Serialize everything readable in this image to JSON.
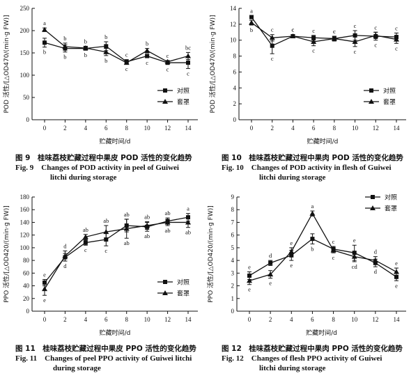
{
  "series_names": [
    "对照",
    "套罩"
  ],
  "charts": [
    {
      "type": "line",
      "x": [
        0,
        2,
        4,
        6,
        8,
        10,
        12,
        14
      ],
      "xticks": [
        "0",
        "2",
        "4",
        "6",
        "8",
        "10",
        "12",
        "14"
      ],
      "xlabel": "贮藏时间/d",
      "ylabel": "POD 活性/[△OD470/(min·g FW)]",
      "ylim": [
        0,
        250
      ],
      "yticks": [
        "0",
        "50",
        "100",
        "150",
        "200",
        "250"
      ],
      "ytick_values": [
        0,
        50,
        100,
        150,
        200,
        250
      ],
      "legend_position": "lower-right",
      "caption_zh": "图 9　桂味荔枝贮藏过程中果皮 POD 活性的变化趋势",
      "caption_en1": "Fig. 9　Changes of POD activity in peel of Guiwei",
      "caption_en2": "litchi during storage",
      "series": [
        {
          "name": "对照",
          "marker": "square",
          "values": [
            173,
            160,
            160,
            165,
            130,
            143,
            128,
            128
          ],
          "err": [
            10,
            8,
            4,
            10,
            5,
            4,
            4,
            13
          ],
          "sig": [
            "b",
            "b",
            "b",
            "b",
            "c",
            "c",
            "c",
            "c"
          ]
        },
        {
          "name": "套罩",
          "marker": "triangle",
          "values": [
            202,
            164,
            161,
            152,
            128,
            155,
            130,
            143
          ],
          "err": [
            4,
            8,
            4,
            8,
            3,
            5,
            3,
            8
          ],
          "sig": [
            "a",
            "b",
            "b",
            "b",
            "c",
            "b",
            "c",
            "bc"
          ]
        }
      ]
    },
    {
      "type": "line",
      "x": [
        0,
        2,
        4,
        6,
        8,
        10,
        12,
        14
      ],
      "xticks": [
        "0",
        "2",
        "4",
        "6",
        "8",
        "10",
        "12",
        "14"
      ],
      "xlabel": "贮藏时间/d",
      "ylabel": "POD 活性/[△OD470/(min·g FW)]",
      "ylim": [
        0,
        14
      ],
      "yticks": [
        "0",
        "2",
        "4",
        "6",
        "8",
        "10",
        "12",
        "14"
      ],
      "ytick_values": [
        0,
        2,
        4,
        6,
        8,
        10,
        12,
        14
      ],
      "legend_position": "lower-right",
      "caption_zh": "图 10　桂味荔枝贮藏过程中果肉 POD 活性的变化趋势",
      "caption_en1": "Fig. 10　Changes of POD activity in flesh of Guiwei",
      "caption_en2": "litchi during storage",
      "series": [
        {
          "name": "对照",
          "marker": "square",
          "values": [
            12.9,
            9.3,
            10.5,
            10.3,
            10.2,
            10.6,
            10.5,
            10.4
          ],
          "err": [
            0.2,
            1.0,
            0.2,
            0.3,
            0.3,
            0.6,
            0.5,
            0.5
          ],
          "sig": [
            "a",
            "c",
            "c",
            "c",
            "c",
            "c",
            "c",
            "c"
          ]
        },
        {
          "name": "套罩",
          "marker": "triangle",
          "values": [
            12.2,
            10.3,
            10.5,
            9.8,
            10.2,
            9.8,
            10.6,
            10.1
          ],
          "err": [
            0.3,
            0.4,
            0.2,
            0.5,
            0.3,
            0.6,
            0.4,
            0.5
          ],
          "sig": [
            "b",
            "c",
            "c",
            "c",
            "c",
            "c",
            "c",
            "c"
          ]
        }
      ]
    },
    {
      "type": "line",
      "x": [
        0,
        2,
        4,
        6,
        8,
        10,
        12,
        14
      ],
      "xticks": [
        "0",
        "2",
        "4",
        "6",
        "8",
        "10",
        "12",
        "14"
      ],
      "xlabel": "贮藏时间/d",
      "ylabel": "PPO 活性/[△OD420/(min·g FW)]",
      "ylim": [
        0,
        180
      ],
      "yticks": [
        "0",
        "20",
        "40",
        "60",
        "80",
        "100",
        "120",
        "140",
        "160",
        "180"
      ],
      "ytick_values": [
        0,
        20,
        40,
        60,
        80,
        100,
        120,
        140,
        160,
        180
      ],
      "legend_position": "lower-right",
      "caption_zh": "图 11　桂味荔枝贮藏过程中果皮 PPO 活性的变化趋势",
      "caption_en1": "Fig. 11　Changes of peel PPO activity of Guiwei litchi",
      "caption_en2": "during storage",
      "series": [
        {
          "name": "对照",
          "marker": "square",
          "values": [
            45,
            85,
            108,
            113,
            135,
            133,
            142,
            148
          ],
          "err": [
            5,
            6,
            4,
            10,
            10,
            7,
            5,
            6
          ],
          "sig": [
            "e",
            "d",
            "c",
            "c",
            "ab",
            "ab",
            "ab",
            "a"
          ]
        },
        {
          "name": "套罩",
          "marker": "triangle",
          "values": [
            35,
            87,
            117,
            125,
            130,
            135,
            140,
            140
          ],
          "err": [
            10,
            8,
            4,
            10,
            15,
            6,
            5,
            8
          ],
          "sig": [
            "e",
            "d",
            "ab",
            "ab",
            "ab",
            "ab",
            "ab",
            "ab"
          ]
        }
      ]
    },
    {
      "type": "line",
      "x": [
        0,
        2,
        4,
        6,
        8,
        10,
        12,
        14
      ],
      "xticks": [
        "0",
        "2",
        "4",
        "6",
        "8",
        "10",
        "12",
        "14"
      ],
      "xlabel": "贮藏时间/d",
      "ylabel": "PPO 活性/[△OD420/(min·g FW)]",
      "ylim": [
        0,
        9
      ],
      "yticks": [
        "0",
        "1",
        "2",
        "3",
        "4",
        "5",
        "6",
        "7",
        "8",
        "9"
      ],
      "ytick_values": [
        0,
        1,
        2,
        3,
        4,
        5,
        6,
        7,
        8,
        9
      ],
      "legend_position": "top-right",
      "caption_zh": "图 12　桂味荔枝贮藏过程中果肉 PPO 活性的变化趋势",
      "caption_en1": "Fig. 12　Changes of flesh PPO activity of Guiwei",
      "caption_en2": "litchi during storage",
      "series": [
        {
          "name": "对照",
          "marker": "square",
          "values": [
            2.8,
            3.8,
            4.4,
            5.7,
            4.9,
            4.6,
            3.8,
            2.7
          ],
          "err": [
            0.3,
            0.2,
            0.4,
            0.4,
            0.2,
            0.6,
            0.3,
            0.3
          ],
          "sig": [
            "e",
            "d",
            "e",
            "b",
            "c",
            "e",
            "d",
            "e"
          ]
        },
        {
          "name": "套罩",
          "marker": "triangle",
          "values": [
            2.4,
            2.9,
            4.7,
            7.7,
            4.8,
            4.3,
            4.0,
            3.1
          ],
          "err": [
            0.3,
            0.3,
            0.3,
            0.2,
            0.2,
            0.4,
            0.3,
            0.3
          ],
          "sig": [
            "e",
            "e",
            "e",
            "a",
            "c",
            "cd",
            "d",
            "e"
          ]
        }
      ]
    }
  ]
}
